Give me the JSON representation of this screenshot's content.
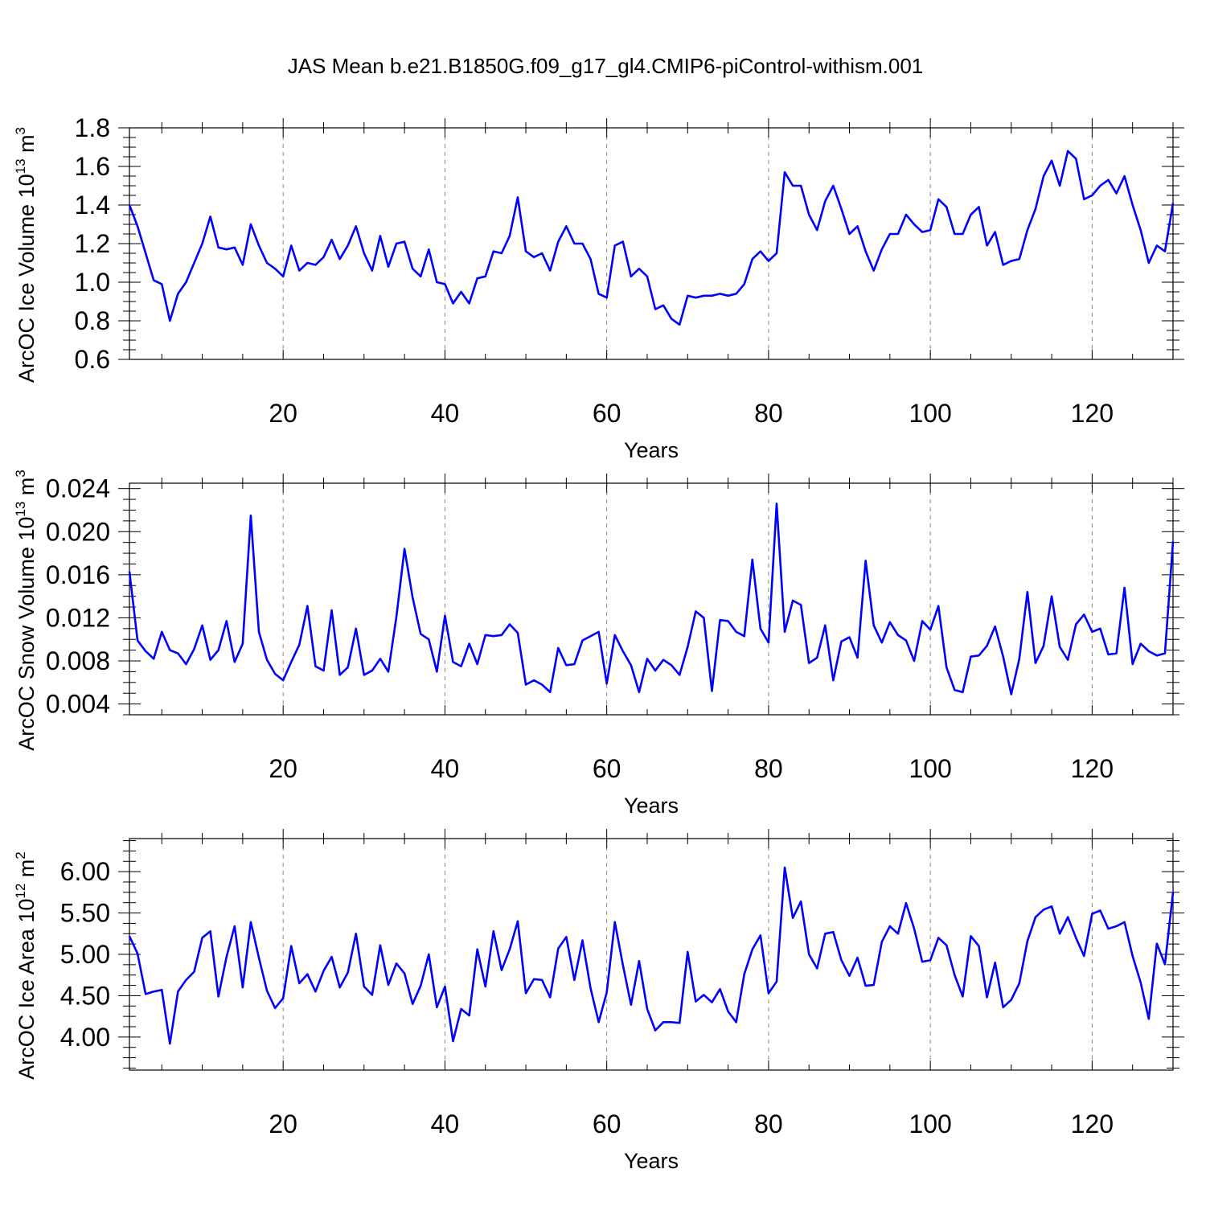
{
  "figure_title": "JAS Mean b.e21.B1850G.f09_g17_gl4.CMIP6-piControl-withism.001",
  "line_color": "#0000ff",
  "chart_data": [
    {
      "type": "line",
      "title": "",
      "xlabel": "Years",
      "ylabel": "ArcOC Ice Volume 10",
      "ylabel_exponent": "13",
      "ylabel_unit": " m",
      "ylabel_unit_exponent": "3",
      "xlim": [
        1,
        130
      ],
      "ylim": [
        0.6,
        1.8
      ],
      "x_ticks": [
        20,
        40,
        60,
        80,
        100,
        120
      ],
      "x_tick_labels": [
        "20",
        "40",
        "60",
        "80",
        "100",
        "120"
      ],
      "y_ticks": [
        0.6,
        0.8,
        1.0,
        1.2,
        1.4,
        1.6,
        1.8
      ],
      "y_tick_labels": [
        "0.6",
        "0.8",
        "1.0",
        "1.2",
        "1.4",
        "1.6",
        "1.8"
      ],
      "grid": "vertical-dashed",
      "series": [
        {
          "values": [
            1.4,
            1.29,
            1.15,
            1.01,
            0.99,
            0.8,
            0.94,
            1.0,
            1.1,
            1.2,
            1.34,
            1.18,
            1.17,
            1.18,
            1.09,
            1.3,
            1.19,
            1.1,
            1.07,
            1.03,
            1.19,
            1.06,
            1.1,
            1.09,
            1.13,
            1.22,
            1.12,
            1.19,
            1.29,
            1.15,
            1.06,
            1.24,
            1.08,
            1.2,
            1.21,
            1.07,
            1.03,
            1.17,
            1.0,
            0.99,
            0.89,
            0.95,
            0.89,
            1.02,
            1.03,
            1.16,
            1.15,
            1.24,
            1.44,
            1.16,
            1.13,
            1.15,
            1.06,
            1.21,
            1.29,
            1.2,
            1.2,
            1.12,
            0.94,
            0.92,
            1.19,
            1.21,
            1.03,
            1.07,
            1.03,
            0.86,
            0.88,
            0.81,
            0.78,
            0.93,
            0.92,
            0.93,
            0.93,
            0.94,
            0.93,
            0.94,
            0.99,
            1.12,
            1.16,
            1.11,
            1.15,
            1.57,
            1.5,
            1.5,
            1.35,
            1.27,
            1.42,
            1.5,
            1.38,
            1.25,
            1.29,
            1.16,
            1.06,
            1.17,
            1.25,
            1.25,
            1.35,
            1.3,
            1.26,
            1.27,
            1.43,
            1.39,
            1.25,
            1.25,
            1.35,
            1.39,
            1.19,
            1.26,
            1.09,
            1.11,
            1.12,
            1.27,
            1.38,
            1.55,
            1.63,
            1.5,
            1.68,
            1.64,
            1.43,
            1.45,
            1.5,
            1.53,
            1.46,
            1.55,
            1.4,
            1.27,
            1.1,
            1.19,
            1.16,
            1.41
          ]
        }
      ]
    },
    {
      "type": "line",
      "title": "",
      "xlabel": "Years",
      "ylabel": "ArcOC Snow Volume 10",
      "ylabel_exponent": "13",
      "ylabel_unit": " m",
      "ylabel_unit_exponent": "3",
      "xlim": [
        1,
        130
      ],
      "ylim": [
        0.003,
        0.0245
      ],
      "x_ticks": [
        20,
        40,
        60,
        80,
        100,
        120
      ],
      "x_tick_labels": [
        "20",
        "40",
        "60",
        "80",
        "100",
        "120"
      ],
      "y_ticks": [
        0.004,
        0.008,
        0.012,
        0.016,
        0.02,
        0.024
      ],
      "y_tick_labels": [
        "0.004",
        "0.008",
        "0.012",
        "0.016",
        "0.020",
        "0.024"
      ],
      "grid": "vertical-dashed",
      "series": [
        {
          "values": [
            0.0163,
            0.0099,
            0.0089,
            0.0082,
            0.0107,
            0.009,
            0.0087,
            0.0077,
            0.0091,
            0.0113,
            0.0081,
            0.009,
            0.0117,
            0.0079,
            0.0096,
            0.0215,
            0.0107,
            0.0081,
            0.0068,
            0.0062,
            0.0079,
            0.0095,
            0.0131,
            0.0075,
            0.0071,
            0.0127,
            0.0067,
            0.0074,
            0.011,
            0.0067,
            0.0071,
            0.0082,
            0.007,
            0.0121,
            0.0184,
            0.0139,
            0.0105,
            0.01,
            0.007,
            0.0122,
            0.0079,
            0.0075,
            0.0096,
            0.0077,
            0.0104,
            0.0103,
            0.0104,
            0.0114,
            0.0106,
            0.0058,
            0.0062,
            0.0058,
            0.0051,
            0.0092,
            0.0076,
            0.0077,
            0.0099,
            0.0103,
            0.0107,
            0.0059,
            0.0104,
            0.0089,
            0.0076,
            0.0051,
            0.0082,
            0.0071,
            0.0081,
            0.0076,
            0.0067,
            0.0093,
            0.0126,
            0.012,
            0.0052,
            0.0118,
            0.0117,
            0.0107,
            0.0103,
            0.0174,
            0.011,
            0.0097,
            0.0226,
            0.0107,
            0.0136,
            0.0132,
            0.0078,
            0.0083,
            0.0113,
            0.0062,
            0.0098,
            0.0102,
            0.0083,
            0.0173,
            0.0113,
            0.0097,
            0.0116,
            0.0104,
            0.0099,
            0.008,
            0.0117,
            0.0109,
            0.0131,
            0.0074,
            0.0053,
            0.0051,
            0.0084,
            0.0085,
            0.0094,
            0.0112,
            0.0084,
            0.0049,
            0.0082,
            0.0144,
            0.0078,
            0.0094,
            0.014,
            0.0093,
            0.0081,
            0.0114,
            0.0123,
            0.0107,
            0.011,
            0.0086,
            0.0087,
            0.0148,
            0.0077,
            0.0096,
            0.0089,
            0.0085,
            0.0087,
            0.0191
          ]
        }
      ]
    },
    {
      "type": "line",
      "title": "",
      "xlabel": "Years",
      "ylabel": "ArcOC Ice Area 10",
      "ylabel_exponent": "12",
      "ylabel_unit": " m",
      "ylabel_unit_exponent": "2",
      "xlim": [
        1,
        130
      ],
      "ylim": [
        3.6,
        6.4
      ],
      "x_ticks": [
        20,
        40,
        60,
        80,
        100,
        120
      ],
      "x_tick_labels": [
        "20",
        "40",
        "60",
        "80",
        "100",
        "120"
      ],
      "y_ticks": [
        4.0,
        4.5,
        5.0,
        5.5,
        6.0
      ],
      "y_tick_labels": [
        "4.00",
        "4.50",
        "5.00",
        "5.50",
        "6.00"
      ],
      "grid": "vertical-dashed",
      "series": [
        {
          "values": [
            5.22,
            5.01,
            4.52,
            4.55,
            4.57,
            3.92,
            4.55,
            4.69,
            4.79,
            5.2,
            5.28,
            4.49,
            4.97,
            5.34,
            4.6,
            5.39,
            4.96,
            4.56,
            4.35,
            4.47,
            5.1,
            4.65,
            4.76,
            4.55,
            4.8,
            4.97,
            4.6,
            4.78,
            5.25,
            4.61,
            4.51,
            5.11,
            4.63,
            4.89,
            4.77,
            4.4,
            4.62,
            5.0,
            4.36,
            4.61,
            3.95,
            4.34,
            4.26,
            5.06,
            4.61,
            5.28,
            4.81,
            5.06,
            5.4,
            4.53,
            4.7,
            4.69,
            4.48,
            5.07,
            5.21,
            4.69,
            5.17,
            4.59,
            4.18,
            4.54,
            5.39,
            4.87,
            4.39,
            4.92,
            4.34,
            4.08,
            4.18,
            4.18,
            4.17,
            5.03,
            4.43,
            4.51,
            4.42,
            4.58,
            4.31,
            4.18,
            4.76,
            5.06,
            5.23,
            4.53,
            4.67,
            6.05,
            5.44,
            5.64,
            5.0,
            4.83,
            5.25,
            5.27,
            4.93,
            4.74,
            4.96,
            4.62,
            4.63,
            5.15,
            5.34,
            5.25,
            5.62,
            5.31,
            4.91,
            4.93,
            5.2,
            5.11,
            4.75,
            4.49,
            5.22,
            5.1,
            4.48,
            4.9,
            4.36,
            4.45,
            4.65,
            5.16,
            5.45,
            5.54,
            5.58,
            5.25,
            5.45,
            5.2,
            4.98,
            5.49,
            5.53,
            5.31,
            5.34,
            5.39,
            4.98,
            4.66,
            4.22,
            5.13,
            4.88,
            5.75
          ]
        }
      ]
    }
  ]
}
